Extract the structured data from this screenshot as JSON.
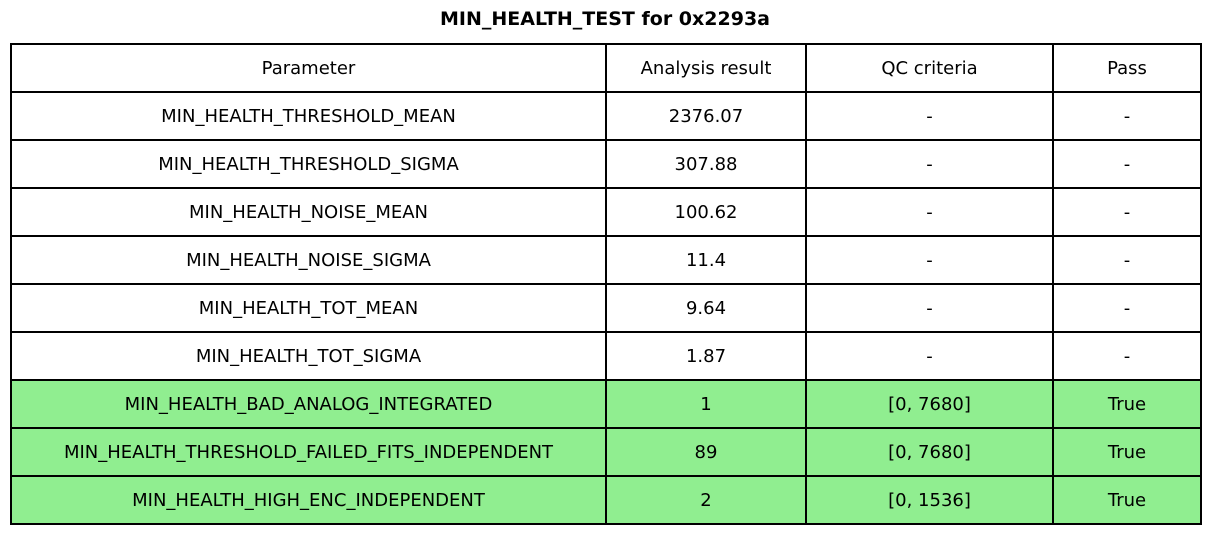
{
  "title": "MIN_HEALTH_TEST for 0x2293a",
  "table": {
    "columns": [
      "Parameter",
      "Analysis result",
      "QC criteria",
      "Pass"
    ],
    "rows": [
      {
        "parameter": "MIN_HEALTH_THRESHOLD_MEAN",
        "result": "2376.07",
        "qc": "-",
        "pass": "-",
        "highlight": false
      },
      {
        "parameter": "MIN_HEALTH_THRESHOLD_SIGMA",
        "result": "307.88",
        "qc": "-",
        "pass": "-",
        "highlight": false
      },
      {
        "parameter": "MIN_HEALTH_NOISE_MEAN",
        "result": "100.62",
        "qc": "-",
        "pass": "-",
        "highlight": false
      },
      {
        "parameter": "MIN_HEALTH_NOISE_SIGMA",
        "result": "11.4",
        "qc": "-",
        "pass": "-",
        "highlight": false
      },
      {
        "parameter": "MIN_HEALTH_TOT_MEAN",
        "result": "9.64",
        "qc": "-",
        "pass": "-",
        "highlight": false
      },
      {
        "parameter": "MIN_HEALTH_TOT_SIGMA",
        "result": "1.87",
        "qc": "-",
        "pass": "-",
        "highlight": false
      },
      {
        "parameter": "MIN_HEALTH_BAD_ANALOG_INTEGRATED",
        "result": "1",
        "qc": "[0, 7680]",
        "pass": "True",
        "highlight": true
      },
      {
        "parameter": "MIN_HEALTH_THRESHOLD_FAILED_FITS_INDEPENDENT",
        "result": "89",
        "qc": "[0, 7680]",
        "pass": "True",
        "highlight": true
      },
      {
        "parameter": "MIN_HEALTH_HIGH_ENC_INDEPENDENT",
        "result": "2",
        "qc": "[0, 1536]",
        "pass": "True",
        "highlight": true
      }
    ]
  },
  "colors": {
    "pass_highlight": "#90ee90",
    "border": "#000000",
    "background": "#ffffff",
    "text": "#000000"
  }
}
